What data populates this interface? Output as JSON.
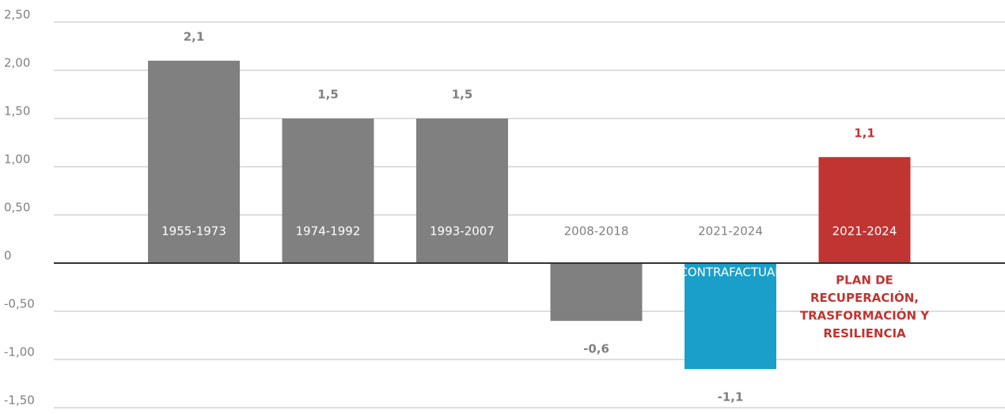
{
  "chart_data": {
    "type": "bar",
    "categories": [
      "1955-1973",
      "1974-1992",
      "1993-2007",
      "2008-2018",
      "2021-2024",
      "2021-2024"
    ],
    "values": [
      2.1,
      1.5,
      1.5,
      -0.6,
      -1.1,
      1.1
    ],
    "value_labels": [
      "2,1",
      "1,5",
      "1,5",
      "-0,6",
      "-1,1",
      "1,1"
    ],
    "colors": [
      "#808080",
      "#808080",
      "#808080",
      "#808080",
      "#1a9fca",
      "#c03431"
    ],
    "value_label_colors": [
      "#808080",
      "#808080",
      "#808080",
      "#808080",
      "#808080",
      "#c03431"
    ],
    "ylim": [
      -1.5,
      2.5
    ],
    "yticks": [
      {
        "value": 2.5,
        "label": "2,50"
      },
      {
        "value": 2,
        "label": "2,00"
      },
      {
        "value": 1.5,
        "label": "1,50"
      },
      {
        "value": 1,
        "label": "1,00"
      },
      {
        "value": 0.5,
        "label": "0,50"
      },
      0,
      {
        "value": -0.5,
        "label": "-0,50"
      },
      {
        "value": -1,
        "label": "-1,00"
      },
      {
        "value": -1.5,
        "label": "-1,50"
      }
    ],
    "grid": true,
    "annotations": [
      {
        "text": "CONTRAFACTUAL",
        "color": "#ffffff"
      },
      {
        "lines": [
          "PLAN DE",
          "RECUPERACIÓN,",
          "TRASFORMACIÓN Y",
          "RESILIENCIA"
        ],
        "color": "#c03431"
      }
    ]
  }
}
